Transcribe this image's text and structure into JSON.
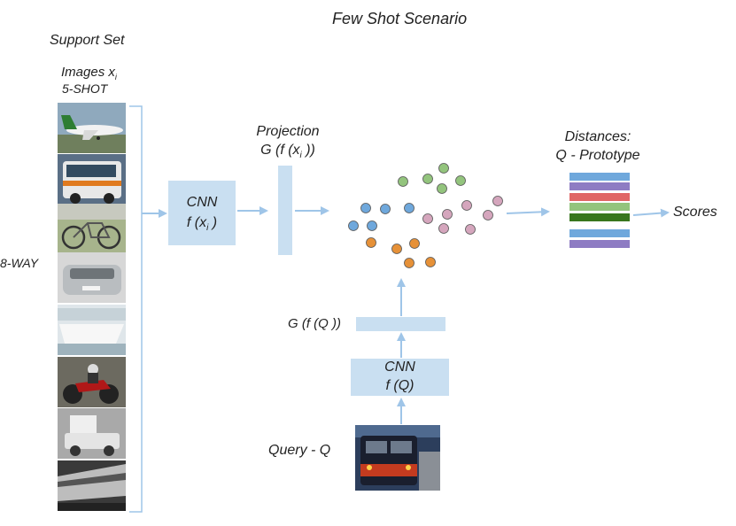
{
  "title": "Few Shot Scenario",
  "support_set": {
    "label": "Support Set",
    "images_label": "Images x",
    "images_sub": "i",
    "shot_label": "5-SHOT",
    "way_label": "8-WAY"
  },
  "cnn_support": {
    "line1": "CNN",
    "line2_pre": "f (x",
    "line2_sub": "i",
    "line2_post": " )"
  },
  "projection": {
    "line1": "Projection",
    "line2_pre": "G (f (x",
    "line2_sub": "i",
    "line2_post": " ))"
  },
  "distances": {
    "line1": "Distances:",
    "line2": "Q - Prototype",
    "bar_colors": [
      "#6fa8dc",
      "#8e7cc3",
      "#e06666",
      "#93c47d",
      "#38761d",
      "#6fa8dc",
      "#8e7cc3"
    ]
  },
  "scores_label": "Scores",
  "query": {
    "projection_label": "G (f (Q ))",
    "cnn_line1": "CNN",
    "cnn_line2": "f (Q)",
    "label": "Query - Q"
  },
  "embedding_clusters": [
    {
      "class": "blue",
      "color": "#6fa8dc"
    },
    {
      "class": "green",
      "color": "#93c47d"
    },
    {
      "class": "pink",
      "color": "#d5a6bd"
    },
    {
      "class": "orange",
      "color": "#e69138"
    }
  ],
  "support_images": [
    "airplane",
    "bus",
    "bicycle",
    "car",
    "boat",
    "motorcycle",
    "truck",
    "train"
  ]
}
